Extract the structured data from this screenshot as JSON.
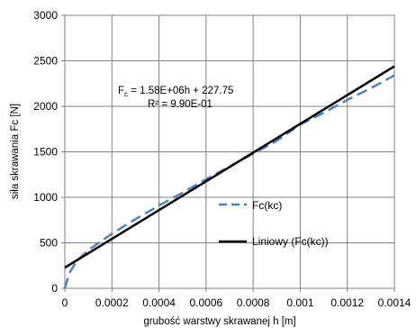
{
  "chart_data": {
    "type": "line",
    "xlabel": "grubość warstwy skrawanej  h [m]",
    "ylabel": "siła skrawania Fc [N]",
    "xlim": [
      0,
      0.0014
    ],
    "ylim": [
      0,
      3000
    ],
    "xticks": [
      0,
      0.0002,
      0.0004,
      0.0006,
      0.0008,
      0.001,
      0.0012,
      0.0014
    ],
    "xtick_labels": [
      "0",
      "0.0002",
      "0.0004",
      "0.0006",
      "0.0008",
      "0.001",
      "0.0012",
      "0.0014"
    ],
    "yticks": [
      0,
      500,
      1000,
      1500,
      2000,
      2500,
      3000
    ],
    "ytick_labels": [
      "0",
      "500",
      "1000",
      "1500",
      "2000",
      "2500",
      "3000"
    ],
    "grid": true,
    "legend_position": "right",
    "series": [
      {
        "name": "Fc(kc)",
        "style": "dashed",
        "color": "#4f81bd",
        "x": [
          0,
          2e-05,
          5e-05,
          0.0001,
          0.0002,
          0.0003,
          0.0004,
          0.0005,
          0.0006,
          0.0007,
          0.0008,
          0.0009,
          0.001,
          0.0011,
          0.0012,
          0.0013,
          0.0014
        ],
        "y": [
          0,
          170,
          300,
          420,
          600,
          760,
          910,
          1050,
          1200,
          1340,
          1480,
          1620,
          1800,
          1930,
          2070,
          2200,
          2340
        ]
      },
      {
        "name": "Liniowy (Fc(kc))",
        "style": "solid",
        "color": "#000000",
        "x": [
          0,
          0.0014
        ],
        "y": [
          227.75,
          2439.75
        ]
      }
    ],
    "annotation": {
      "line1_main": "F",
      "line1_sub": "c",
      "line1_rest": " = 1.58E+06h + 227.75",
      "line2": "R² = 9.90E-01"
    }
  }
}
